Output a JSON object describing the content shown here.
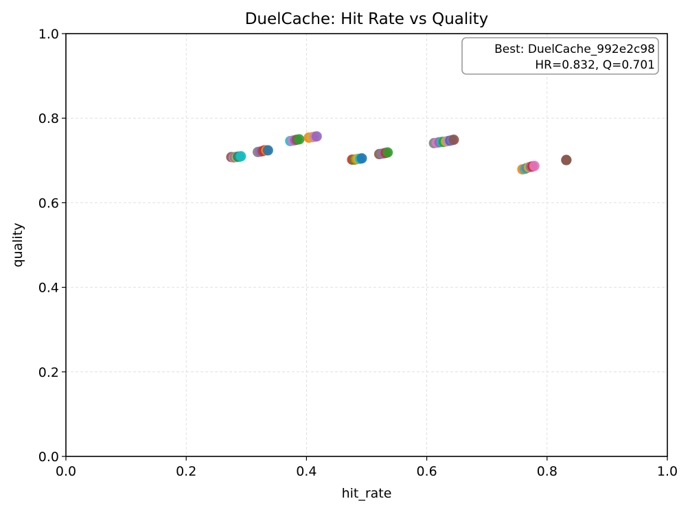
{
  "chart_data": {
    "type": "scatter",
    "title": "DuelCache: Hit Rate vs Quality",
    "xlabel": "hit_rate",
    "ylabel": "quality",
    "xlim": [
      0.0,
      1.0
    ],
    "ylim": [
      0.0,
      1.0
    ],
    "xticks": [
      "0.0",
      "0.2",
      "0.4",
      "0.6",
      "0.8",
      "1.0"
    ],
    "yticks": [
      "0.0",
      "0.2",
      "0.4",
      "0.6",
      "0.8",
      "1.0"
    ],
    "grid": true,
    "annotation": {
      "line1": "Best: DuelCache_992e2c98",
      "line2": "HR=0.832, Q=0.701",
      "placement": "top-right"
    },
    "palette": [
      "#1f77b4",
      "#ff7f0e",
      "#2ca02c",
      "#d62728",
      "#9467bd",
      "#8c564b",
      "#e377c2",
      "#7f7f7f",
      "#bcbd22",
      "#17becf"
    ],
    "points": [
      {
        "x": 0.275,
        "y": 0.708,
        "color": "#8c564b"
      },
      {
        "x": 0.279,
        "y": 0.707,
        "color": "#e377c2"
      },
      {
        "x": 0.281,
        "y": 0.708,
        "color": "#7f7f7f"
      },
      {
        "x": 0.284,
        "y": 0.708,
        "color": "#bcbd22"
      },
      {
        "x": 0.286,
        "y": 0.709,
        "color": "#1f77b4"
      },
      {
        "x": 0.289,
        "y": 0.709,
        "color": "#2ca02c"
      },
      {
        "x": 0.291,
        "y": 0.71,
        "color": "#17becf"
      },
      {
        "x": 0.319,
        "y": 0.72,
        "color": "#7f7f7f"
      },
      {
        "x": 0.323,
        "y": 0.721,
        "color": "#9467bd"
      },
      {
        "x": 0.327,
        "y": 0.722,
        "color": "#8c564b"
      },
      {
        "x": 0.33,
        "y": 0.724,
        "color": "#d62728"
      },
      {
        "x": 0.333,
        "y": 0.724,
        "color": "#ff7f0e"
      },
      {
        "x": 0.336,
        "y": 0.724,
        "color": "#1f77b4"
      },
      {
        "x": 0.373,
        "y": 0.746,
        "color": "#17becf"
      },
      {
        "x": 0.377,
        "y": 0.747,
        "color": "#e377c2"
      },
      {
        "x": 0.381,
        "y": 0.748,
        "color": "#9467bd"
      },
      {
        "x": 0.384,
        "y": 0.749,
        "color": "#8c564b"
      },
      {
        "x": 0.388,
        "y": 0.75,
        "color": "#2ca02c"
      },
      {
        "x": 0.404,
        "y": 0.754,
        "color": "#ff7f0e"
      },
      {
        "x": 0.409,
        "y": 0.755,
        "color": "#bcbd22"
      },
      {
        "x": 0.413,
        "y": 0.756,
        "color": "#e377c2"
      },
      {
        "x": 0.417,
        "y": 0.757,
        "color": "#9467bd"
      },
      {
        "x": 0.476,
        "y": 0.702,
        "color": "#d62728"
      },
      {
        "x": 0.48,
        "y": 0.702,
        "color": "#2ca02c"
      },
      {
        "x": 0.483,
        "y": 0.703,
        "color": "#ff7f0e"
      },
      {
        "x": 0.486,
        "y": 0.704,
        "color": "#bcbd22"
      },
      {
        "x": 0.489,
        "y": 0.704,
        "color": "#17becf"
      },
      {
        "x": 0.492,
        "y": 0.705,
        "color": "#1f77b4"
      },
      {
        "x": 0.521,
        "y": 0.715,
        "color": "#8c564b"
      },
      {
        "x": 0.525,
        "y": 0.716,
        "color": "#7f7f7f"
      },
      {
        "x": 0.529,
        "y": 0.717,
        "color": "#9467bd"
      },
      {
        "x": 0.532,
        "y": 0.718,
        "color": "#d62728"
      },
      {
        "x": 0.535,
        "y": 0.719,
        "color": "#2ca02c"
      },
      {
        "x": 0.612,
        "y": 0.741,
        "color": "#7f7f7f"
      },
      {
        "x": 0.617,
        "y": 0.742,
        "color": "#e377c2"
      },
      {
        "x": 0.621,
        "y": 0.743,
        "color": "#9467bd"
      },
      {
        "x": 0.625,
        "y": 0.744,
        "color": "#17becf"
      },
      {
        "x": 0.628,
        "y": 0.744,
        "color": "#2ca02c"
      },
      {
        "x": 0.632,
        "y": 0.745,
        "color": "#bcbd22"
      },
      {
        "x": 0.635,
        "y": 0.746,
        "color": "#e377c2"
      },
      {
        "x": 0.639,
        "y": 0.747,
        "color": "#1f77b4"
      },
      {
        "x": 0.642,
        "y": 0.748,
        "color": "#9467bd"
      },
      {
        "x": 0.645,
        "y": 0.749,
        "color": "#8c564b"
      },
      {
        "x": 0.759,
        "y": 0.679,
        "color": "#ff7f0e"
      },
      {
        "x": 0.763,
        "y": 0.68,
        "color": "#17becf"
      },
      {
        "x": 0.766,
        "y": 0.682,
        "color": "#7f7f7f"
      },
      {
        "x": 0.77,
        "y": 0.684,
        "color": "#bcbd22"
      },
      {
        "x": 0.773,
        "y": 0.685,
        "color": "#9467bd"
      },
      {
        "x": 0.776,
        "y": 0.686,
        "color": "#d62728"
      },
      {
        "x": 0.779,
        "y": 0.687,
        "color": "#e377c2"
      },
      {
        "x": 0.832,
        "y": 0.701,
        "color": "#d62728"
      },
      {
        "x": 0.832,
        "y": 0.701,
        "color": "#7f7f7f"
      },
      {
        "x": 0.832,
        "y": 0.701,
        "color": "#8c564b"
      }
    ]
  }
}
